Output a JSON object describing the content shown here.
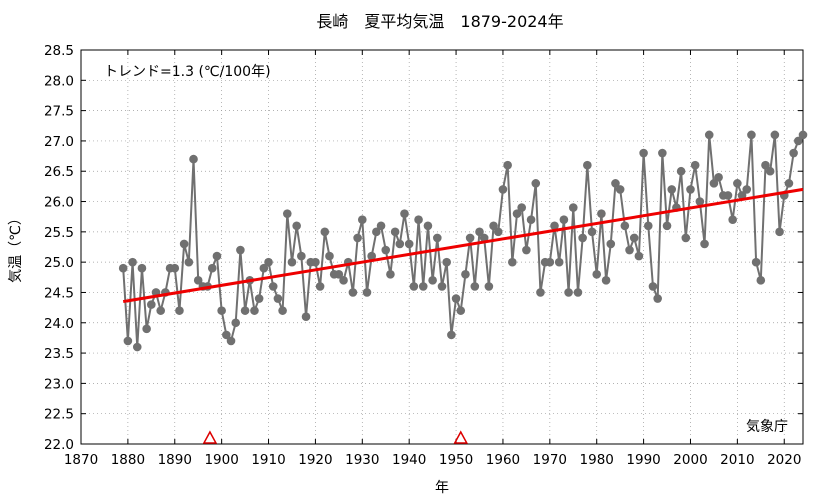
{
  "chart_data": {
    "type": "line",
    "title": "長崎　夏平均気温　1879-2024年",
    "xlabel": "年",
    "ylabel": "気温（℃）",
    "xlim": [
      1870,
      2024
    ],
    "ylim": [
      22.0,
      28.5
    ],
    "x_ticks": [
      1870,
      1880,
      1890,
      1900,
      1910,
      1920,
      1930,
      1940,
      1950,
      1960,
      1970,
      1980,
      1990,
      2000,
      2010,
      2020
    ],
    "y_ticks": [
      "22.0",
      "22.5",
      "23.0",
      "23.5",
      "24.0",
      "24.5",
      "25.0",
      "25.5",
      "26.0",
      "26.5",
      "27.0",
      "27.5",
      "28.0",
      "28.5"
    ],
    "grid": true,
    "trend_text": "トレンド=1.3 (℃/100年)",
    "source_text": "気象庁",
    "trend_line": {
      "x": [
        1879,
        2024
      ],
      "y": [
        24.35,
        26.2
      ],
      "color": "#ee0000"
    },
    "markers": {
      "years": [
        1897.5,
        1951
      ],
      "color": "#dd0000"
    },
    "series": [
      {
        "color": "#707070",
        "x": [
          1879,
          1880,
          1881,
          1882,
          1883,
          1884,
          1885,
          1886,
          1887,
          1888,
          1889,
          1890,
          1891,
          1892,
          1893,
          1894,
          1895,
          1896,
          1897,
          1898,
          1899,
          1900,
          1901,
          1902,
          1903,
          1904,
          1905,
          1906,
          1907,
          1908,
          1909,
          1910,
          1911,
          1912,
          1913,
          1914,
          1915,
          1916,
          1917,
          1918,
          1919,
          1920,
          1921,
          1922,
          1923,
          1924,
          1925,
          1926,
          1927,
          1928,
          1929,
          1930,
          1931,
          1932,
          1933,
          1934,
          1935,
          1936,
          1937,
          1938,
          1939,
          1940,
          1941,
          1942,
          1943,
          1944,
          1945,
          1946,
          1947,
          1948,
          1949,
          1950,
          1951,
          1952,
          1953,
          1954,
          1955,
          1956,
          1957,
          1958,
          1959,
          1960,
          1961,
          1962,
          1963,
          1964,
          1965,
          1966,
          1967,
          1968,
          1969,
          1970,
          1971,
          1972,
          1973,
          1974,
          1975,
          1976,
          1977,
          1978,
          1979,
          1980,
          1981,
          1982,
          1983,
          1984,
          1985,
          1986,
          1987,
          1988,
          1989,
          1990,
          1991,
          1992,
          1993,
          1994,
          1995,
          1996,
          1997,
          1998,
          1999,
          2000,
          2001,
          2002,
          2003,
          2004,
          2005,
          2006,
          2007,
          2008,
          2009,
          2010,
          2011,
          2012,
          2013,
          2014,
          2015,
          2016,
          2017,
          2018,
          2019,
          2020,
          2021,
          2022,
          2023,
          2024
        ],
        "values": [
          24.9,
          23.7,
          25.0,
          23.6,
          24.9,
          23.9,
          24.3,
          24.5,
          24.2,
          24.5,
          24.9,
          24.9,
          24.2,
          25.3,
          25.0,
          26.7,
          24.7,
          24.6,
          24.6,
          24.9,
          25.1,
          24.2,
          23.8,
          23.7,
          24.0,
          25.2,
          24.2,
          24.7,
          24.2,
          24.4,
          24.9,
          25.0,
          24.6,
          24.4,
          24.2,
          25.8,
          25.0,
          25.6,
          25.1,
          24.1,
          25.0,
          25.0,
          24.6,
          25.5,
          25.1,
          24.8,
          24.8,
          24.7,
          25.0,
          24.5,
          25.4,
          25.7,
          24.5,
          25.1,
          25.5,
          25.6,
          25.2,
          24.8,
          25.5,
          25.3,
          25.8,
          25.3,
          24.6,
          25.7,
          24.6,
          25.6,
          24.7,
          25.4,
          24.6,
          25.0,
          23.8,
          24.4,
          24.2,
          24.8,
          25.4,
          24.6,
          25.5,
          25.4,
          24.6,
          25.6,
          25.5,
          26.2,
          26.6,
          25.0,
          25.8,
          25.9,
          25.2,
          25.7,
          26.3,
          24.5,
          25.0,
          25.0,
          25.6,
          25.0,
          25.7,
          24.5,
          25.9,
          24.5,
          25.4,
          26.6,
          25.5,
          24.8,
          25.8,
          24.7,
          25.3,
          26.3,
          26.2,
          25.6,
          25.2,
          25.4,
          25.1,
          26.8,
          25.6,
          24.6,
          24.4,
          26.8,
          25.6,
          26.2,
          25.9,
          26.5,
          25.4,
          26.2,
          26.6,
          26.0,
          25.3,
          27.1,
          26.3,
          26.4,
          26.1,
          26.1,
          25.7,
          26.3,
          26.1,
          26.2,
          27.1,
          25.0,
          24.7,
          26.6,
          26.5,
          27.1,
          25.5,
          26.1,
          26.3,
          26.8,
          27.0,
          27.1
        ]
      }
    ]
  }
}
